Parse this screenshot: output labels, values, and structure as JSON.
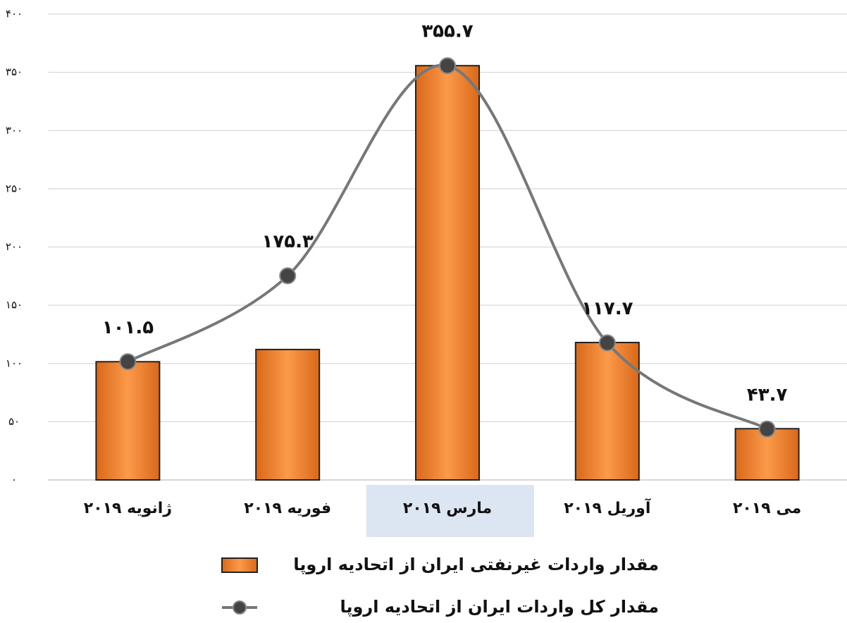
{
  "chart_data": {
    "type": "bar_line",
    "categories": [
      "ژانویه ۲۰۱۹",
      "فوریه ۲۰۱۹",
      "مارس ۲۰۱۹",
      "آوریل ۲۰۱۹",
      "می ۲۰۱۹"
    ],
    "series": [
      {
        "name": "مقدار واردات غیرنفتی ایران از اتحادیه اروپا",
        "type": "bar",
        "color": "#f58a32",
        "values": [
          101.5,
          112,
          355.7,
          118,
          44
        ]
      },
      {
        "name": "مقدار کل واردات ایران از اتحادیه اروپا",
        "type": "line",
        "color": "#777777",
        "values": [
          101.5,
          175.3,
          355.7,
          117.7,
          43.7
        ],
        "value_labels": [
          "۱۰۱.۵",
          "۱۷۵.۳",
          "۳۵۵.۷",
          "۱۱۷.۷",
          "۴۳.۷"
        ]
      }
    ],
    "ylim": [
      0,
      400
    ],
    "yticks": [
      {
        "value": 0,
        "label": "۰"
      },
      {
        "value": 50,
        "label": "۵۰"
      },
      {
        "value": 100,
        "label": "۱۰۰"
      },
      {
        "value": 150,
        "label": "۱۵۰"
      },
      {
        "value": 200,
        "label": "۲۰۰"
      },
      {
        "value": 250,
        "label": "۲۵۰"
      },
      {
        "value": 300,
        "label": "۳۰۰"
      },
      {
        "value": 350,
        "label": "۳۵۰"
      },
      {
        "value": 400,
        "label": "۴۰۰"
      }
    ],
    "grid": true
  }
}
